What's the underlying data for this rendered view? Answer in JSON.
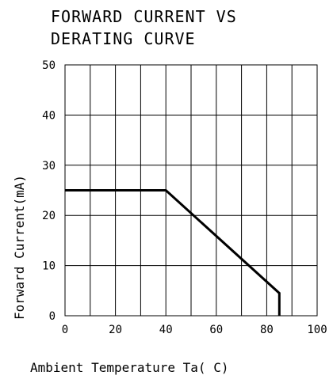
{
  "chart_data": {
    "type": "line",
    "title": [
      "FORWARD CURRENT VS",
      "DERATING CURVE"
    ],
    "xlabel": "Ambient  Temperature  Ta( C)",
    "ylabel": "Forward  Current(mA)",
    "xlim": [
      0,
      100
    ],
    "ylim": [
      0,
      50
    ],
    "xticks": [
      0,
      20,
      40,
      60,
      80,
      100
    ],
    "xtick_labels": [
      "0",
      "20",
      "40",
      "60",
      "80",
      "100"
    ],
    "yticks": [
      0,
      10,
      20,
      30,
      40,
      50
    ],
    "ytick_labels": [
      "0",
      "10",
      "20",
      "30",
      "40",
      "50"
    ],
    "grid": true,
    "x_grid_step": 10,
    "y_grid_step": 10,
    "series": [
      {
        "x": [
          0,
          40,
          85,
          85
        ],
        "y": [
          25,
          25,
          4.5,
          0
        ]
      }
    ],
    "colors": {
      "line": "#000000",
      "grid": "#000000",
      "background": "#ffffff"
    }
  }
}
